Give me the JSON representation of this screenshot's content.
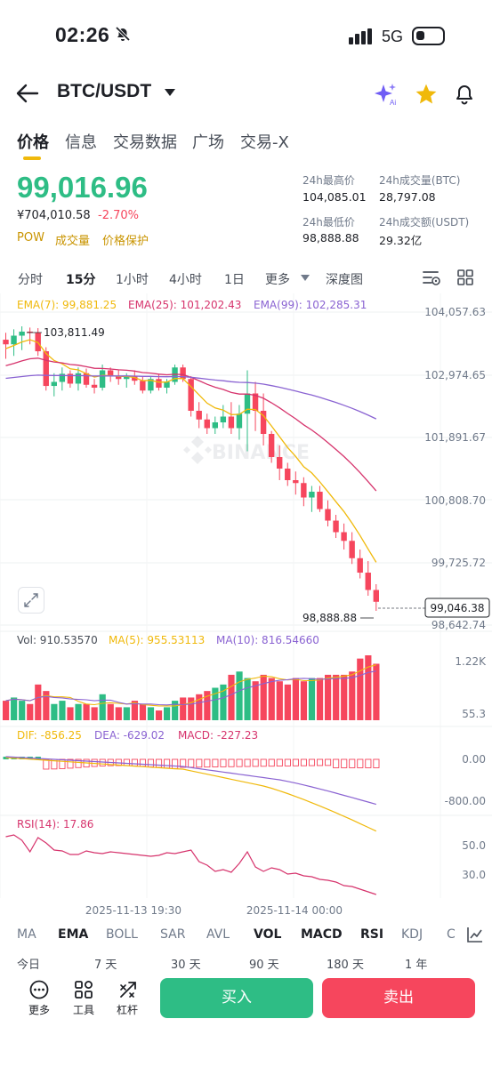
{
  "status_bar": {
    "time": "02:26",
    "network": "5G"
  },
  "header": {
    "pair": "BTC/USDT"
  },
  "tabs": [
    "价格",
    "信息",
    "交易数据",
    "广场",
    "交易-X"
  ],
  "price": {
    "last": "99,016.96",
    "cny": "¥704,010.58",
    "change": "-2.70%",
    "tags": [
      "POW",
      "成交量",
      "价格保护"
    ]
  },
  "stats": {
    "high_label": "24h最高价",
    "high": "104,085.01",
    "vol_btc_label": "24h成交量(BTC)",
    "vol_btc": "28,797.08",
    "low_label": "24h最低价",
    "low": "98,888.88",
    "vol_usdt_label": "24h成交额(USDT)",
    "vol_usdt": "29.32亿"
  },
  "intervals": [
    "分时",
    "15分",
    "1小时",
    "4小时",
    "1日",
    "更多",
    "深度图"
  ],
  "colors": {
    "up": "#2ebd85",
    "down": "#f6465d",
    "accent": "#f0b90b",
    "ema7": "#f0b90b",
    "ema25": "#d6336c",
    "ema99": "#8a63d2"
  },
  "chart_data": {
    "type": "candlestick",
    "ema_legend": {
      "ema7": "EMA(7): 99,881.25",
      "ema25": "EMA(25): 101,202.43",
      "ema99": "EMA(99): 102,285.31"
    },
    "price_axis": [
      "104,057.63",
      "102,974.65",
      "101,891.67",
      "100,808.70",
      "99,725.72",
      "98,642.74"
    ],
    "ylim": [
      98642.74,
      104057.63
    ],
    "max_label": "103,811.49",
    "min_label": "98,888.88",
    "current_price": "99,046.38",
    "candles": [
      [
        103580,
        103700,
        103250,
        103500
      ],
      [
        103500,
        103760,
        103300,
        103650
      ],
      [
        103650,
        103811,
        103400,
        103720
      ],
      [
        103720,
        103790,
        103500,
        103700
      ],
      [
        103700,
        103780,
        103300,
        103380
      ],
      [
        103380,
        103450,
        102700,
        102780
      ],
      [
        102780,
        103000,
        102600,
        102850
      ],
      [
        102850,
        103100,
        102700,
        102990
      ],
      [
        102990,
        103050,
        102750,
        102820
      ],
      [
        102820,
        103100,
        102700,
        103000
      ],
      [
        103000,
        103080,
        102750,
        102800
      ],
      [
        102800,
        102900,
        102650,
        102750
      ],
      [
        102750,
        103150,
        102700,
        103050
      ],
      [
        103050,
        103100,
        102850,
        102950
      ],
      [
        102950,
        103050,
        102800,
        102900
      ],
      [
        102900,
        103000,
        102750,
        102950
      ],
      [
        102950,
        103050,
        102800,
        102870
      ],
      [
        102870,
        102950,
        102650,
        102700
      ],
      [
        102700,
        102950,
        102650,
        102900
      ],
      [
        102900,
        102980,
        102700,
        102750
      ],
      [
        102750,
        102900,
        102650,
        102850
      ],
      [
        102850,
        103150,
        102800,
        103100
      ],
      [
        103100,
        103150,
        102850,
        102900
      ],
      [
        102900,
        102950,
        102250,
        102350
      ],
      [
        102350,
        102500,
        102050,
        102200
      ],
      [
        102200,
        102300,
        101950,
        102050
      ],
      [
        102050,
        102250,
        101950,
        102150
      ],
      [
        102150,
        102450,
        102050,
        102250
      ],
      [
        102250,
        102500,
        101950,
        102050
      ],
      [
        102050,
        102450,
        101850,
        102300
      ],
      [
        102300,
        103050,
        101650,
        102650
      ],
      [
        102650,
        102850,
        102000,
        102350
      ],
      [
        102350,
        102650,
        101750,
        101950
      ],
      [
        101950,
        102000,
        101450,
        101550
      ],
      [
        101550,
        101750,
        101150,
        101350
      ],
      [
        101350,
        101450,
        101050,
        101150
      ],
      [
        101150,
        101300,
        100900,
        101100
      ],
      [
        101100,
        101200,
        100700,
        100850
      ],
      [
        100850,
        101050,
        100600,
        100950
      ],
      [
        100950,
        101050,
        100600,
        100650
      ],
      [
        100650,
        100800,
        100350,
        100450
      ],
      [
        100450,
        100550,
        100150,
        100250
      ],
      [
        100250,
        100400,
        99950,
        100100
      ],
      [
        100100,
        100250,
        99700,
        99800
      ],
      [
        99800,
        99950,
        99450,
        99550
      ],
      [
        99550,
        99750,
        99150,
        99250
      ],
      [
        99250,
        99350,
        98889,
        99046
      ]
    ],
    "volume_legend": {
      "vol": "Vol: 910.53570",
      "ma5": "MA(5): 955.53113",
      "ma10": "MA(10): 816.54660"
    },
    "volume_axis": [
      "1.22K",
      "55.3"
    ],
    "macd_legend": {
      "dif": "DIF: -856.25",
      "dea": "DEA: -629.02",
      "macd": "MACD: -227.23"
    },
    "macd_axis": [
      "0.00",
      "-800.00"
    ],
    "rsi_legend": "RSI(14): 17.86",
    "rsi_axis": [
      "50.0",
      "30.0"
    ],
    "time_axis": [
      "2025-11-13 19:30",
      "2025-11-14 00:00"
    ]
  },
  "indicators": [
    "MA",
    "EMA",
    "BOLL",
    "SAR",
    "AVL",
    "VOL",
    "MACD",
    "RSI",
    "KDJ",
    "C"
  ],
  "ranges": [
    "今日",
    "7 天",
    "30 天",
    "90 天",
    "180 天",
    "1 年"
  ],
  "bottom": {
    "more": "更多",
    "tools": "工具",
    "leverage": "杠杆",
    "buy": "买入",
    "sell": "卖出"
  },
  "watermark": "BINANCE"
}
